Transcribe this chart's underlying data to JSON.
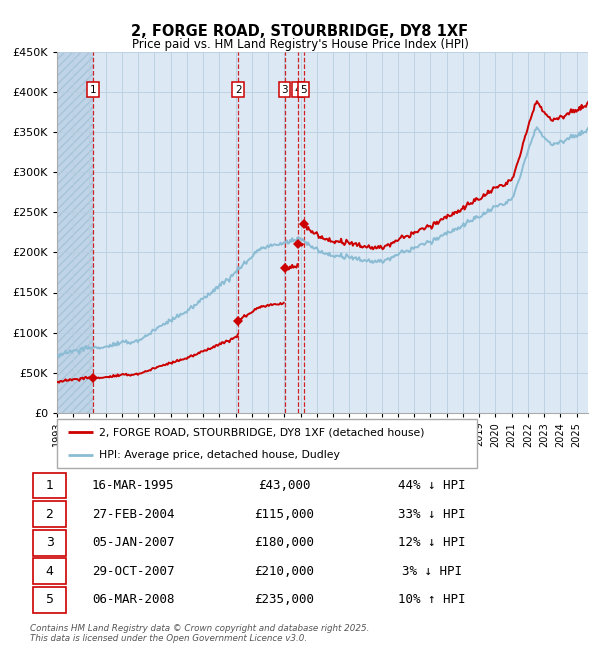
{
  "title": "2, FORGE ROAD, STOURBRIDGE, DY8 1XF",
  "subtitle": "Price paid vs. HM Land Registry's House Price Index (HPI)",
  "legend_property": "2, FORGE ROAD, STOURBRIDGE, DY8 1XF (detached house)",
  "legend_hpi": "HPI: Average price, detached house, Dudley",
  "footer": "Contains HM Land Registry data © Crown copyright and database right 2025.\nThis data is licensed under the Open Government Licence v3.0.",
  "transactions": [
    {
      "num": 1,
      "date": "16-MAR-1995",
      "year": 1995.21,
      "price": 43000,
      "pct": "44%",
      "dir": "↓"
    },
    {
      "num": 2,
      "date": "27-FEB-2004",
      "year": 2004.16,
      "price": 115000,
      "pct": "33%",
      "dir": "↓"
    },
    {
      "num": 3,
      "date": "05-JAN-2007",
      "year": 2007.01,
      "price": 180000,
      "pct": "12%",
      "dir": "↓"
    },
    {
      "num": 4,
      "date": "29-OCT-2007",
      "year": 2007.83,
      "price": 210000,
      "pct": "3%",
      "dir": "↓"
    },
    {
      "num": 5,
      "date": "06-MAR-2008",
      "year": 2008.18,
      "price": 235000,
      "pct": "10%",
      "dir": "↑"
    }
  ],
  "ylim": [
    0,
    450000
  ],
  "yticks": [
    0,
    50000,
    100000,
    150000,
    200000,
    250000,
    300000,
    350000,
    400000,
    450000
  ],
  "xlim_start": 1993.0,
  "xlim_end": 2025.7,
  "bg_color": "#dce9f5",
  "hatch_color": "#c0d4e8",
  "grid_color": "#b8cfe0",
  "property_line_color": "#cc0000",
  "hpi_line_color": "#8bbcd4",
  "vline_color": "#cc0000",
  "marker_color": "#cc0000",
  "table_border_color": "#cc0000"
}
